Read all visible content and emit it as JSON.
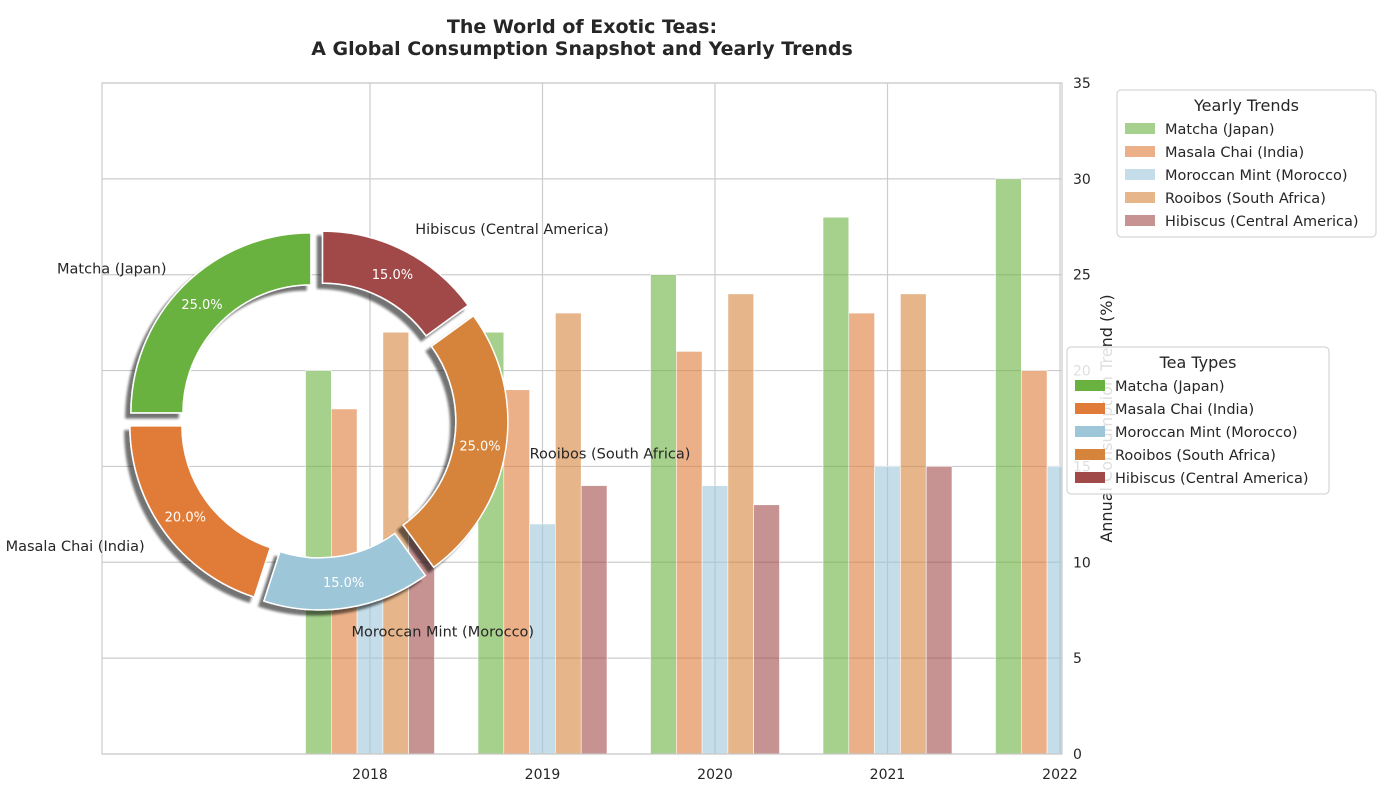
{
  "chart_data": [
    {
      "type": "bar",
      "title_lines": [
        "The World of Exotic Teas:",
        "A Global Consumption Snapshot and Yearly Trends"
      ],
      "categories": [
        "2018",
        "2019",
        "2020",
        "2021",
        "2022"
      ],
      "ylabel": "Annual Consumption Trend (%)",
      "ylim": [
        0,
        35
      ],
      "yticks": [
        0,
        5,
        10,
        15,
        20,
        25,
        30,
        35
      ],
      "y_axis_side": "right",
      "grid": true,
      "series": [
        {
          "name": "Matcha (Japan)",
          "color": "#6ab23f",
          "values": [
            20,
            22,
            25,
            28,
            30
          ]
        },
        {
          "name": "Masala Chai (India)",
          "color": "#e07b39",
          "values": [
            18,
            19,
            21,
            23,
            20
          ]
        },
        {
          "name": "Moroccan Mint (Morocco)",
          "color": "#9dc6d8",
          "values": [
            10,
            12,
            14,
            15,
            15
          ]
        },
        {
          "name": "Rooibos (South Africa)",
          "color": "#d6843b",
          "values": [
            22,
            23,
            24,
            24,
            null
          ]
        },
        {
          "name": "Hibiscus (Central America)",
          "color": "#a14a4a",
          "values": [
            12,
            14,
            13,
            15,
            null
          ]
        }
      ],
      "legend": {
        "title": "Yearly Trends",
        "placement": "outside-top-right"
      }
    },
    {
      "type": "pie",
      "style": "donut-exploded-shadow",
      "slices": [
        {
          "label": "Matcha (Japan)",
          "value": 25.0,
          "pct_label": "25.0%",
          "color": "#6ab23f"
        },
        {
          "label": "Masala Chai (India)",
          "value": 20.0,
          "pct_label": "20.0%",
          "color": "#e07b39"
        },
        {
          "label": "Moroccan Mint (Morocco)",
          "value": 15.0,
          "pct_label": "15.0%",
          "color": "#9dc6d8"
        },
        {
          "label": "Rooibos (South Africa)",
          "value": 25.0,
          "pct_label": "25.0%",
          "color": "#d6843b"
        },
        {
          "label": "Hibiscus (Central America)",
          "value": 15.0,
          "pct_label": "15.0%",
          "color": "#a14a4a"
        }
      ],
      "legend": {
        "title": "Tea Types",
        "placement": "outside-right"
      }
    }
  ]
}
